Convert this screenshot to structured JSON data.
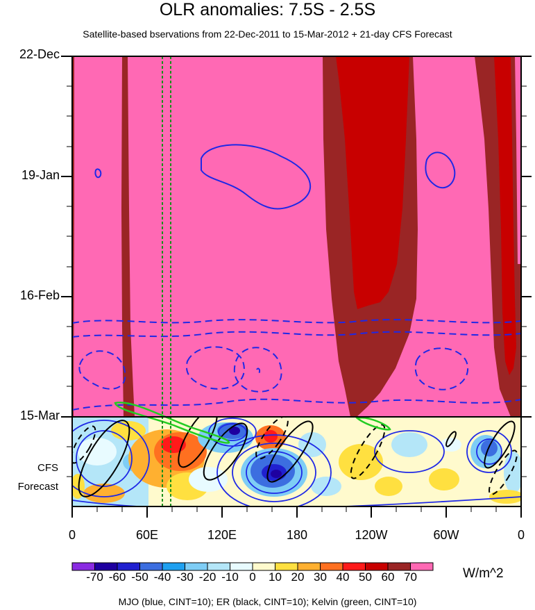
{
  "title": "OLR anomalies: 7.5S - 2.5S",
  "subtitle": "Satellite-based bservations from 22-Dec-2011 to 15-Mar-2012 + 21-day CFS Forecast",
  "units": "W/m^2",
  "footer": "MJO (blue, CINT=10); ER (black, CINT=10); Kelvin (green, CINT=10)",
  "forecast_label_line1": "CFS",
  "forecast_label_line2": "Forecast",
  "chart_data": {
    "type": "heatmap",
    "title": "OLR anomalies: 7.5S - 2.5S",
    "subtitle": "Satellite-based bservations from 22-Dec-2011 to 15-Mar-2012 + 21-day CFS Forecast",
    "x_tick_labels": [
      "0",
      "60E",
      "120E",
      "180",
      "120W",
      "60W",
      "0"
    ],
    "x_range_deg_east": [
      0,
      360
    ],
    "y_tick_labels": [
      "22-Dec",
      "19-Jan",
      "16-Feb",
      "15-Mar"
    ],
    "y_time_range": [
      "22-Dec-2011",
      "05-Apr-2012"
    ],
    "observation_end": "15-Mar-2012",
    "forecast_days": 21,
    "colorbar": {
      "labels": [
        "-70",
        "-60",
        "-50",
        "-40",
        "-30",
        "-20",
        "-10",
        "0",
        "10",
        "20",
        "30",
        "40",
        "50",
        "60",
        "70"
      ],
      "colors": [
        "#8a2be2",
        "#1e00a0",
        "#2020d0",
        "#3c6ee0",
        "#1ea0f0",
        "#7ecdf5",
        "#b4e6f8",
        "#e8fbff",
        "#fffacd",
        "#ffe040",
        "#ffb030",
        "#ff7020",
        "#ff1a1a",
        "#c80000",
        "#9a2525",
        "#ff69b4"
      ],
      "units": "W/m^2"
    },
    "overlays": [
      {
        "name": "MJO",
        "color": "blue",
        "cint": 10
      },
      {
        "name": "ER",
        "color": "black",
        "cint": 10
      },
      {
        "name": "Kelvin",
        "color": "green",
        "cint": 10
      }
    ],
    "highlights": [
      {
        "feature": "dashed green lines",
        "lon": [
          72,
          80
        ]
      }
    ]
  }
}
